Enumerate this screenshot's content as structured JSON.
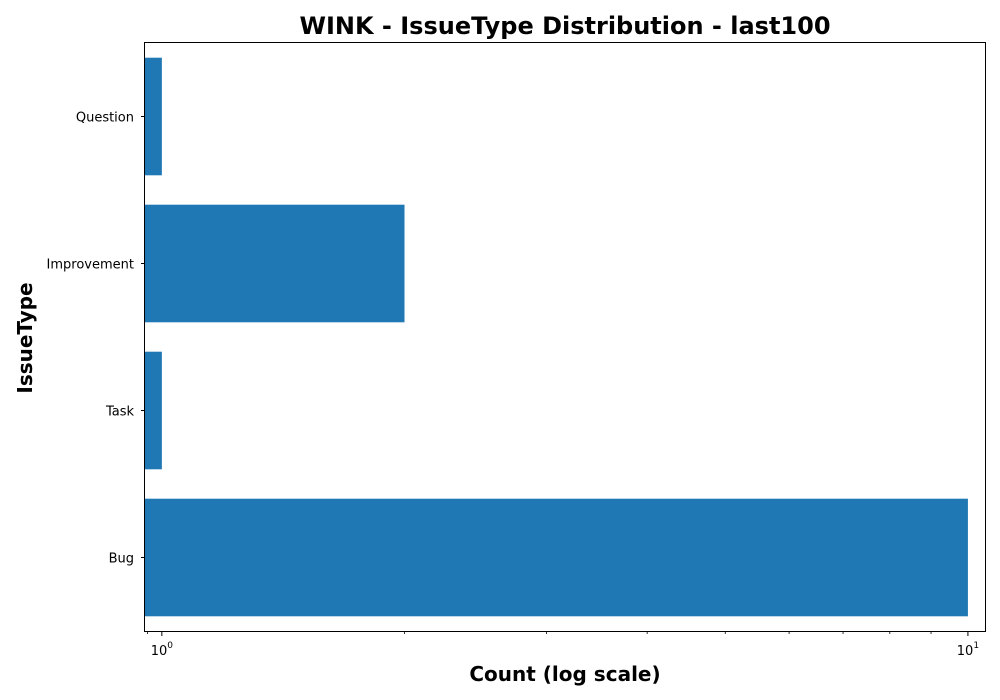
{
  "chart_data": {
    "type": "bar",
    "orientation": "horizontal",
    "title": "WINK - IssueType Distribution - last100",
    "xlabel": "Count (log scale)",
    "ylabel": "IssueType",
    "x_scale": "log",
    "xlim": [
      0.953,
      10.5
    ],
    "categories": [
      "Bug",
      "Task",
      "Improvement",
      "Question"
    ],
    "series": [
      {
        "values": [
          10,
          1,
          2,
          1
        ],
        "color": "#1f77b4"
      }
    ],
    "x_ticks": [
      {
        "value": 1,
        "base": "10",
        "exponent": "0"
      },
      {
        "value": 10,
        "base": "10",
        "exponent": "1"
      }
    ],
    "grid": false,
    "legend": "none"
  }
}
